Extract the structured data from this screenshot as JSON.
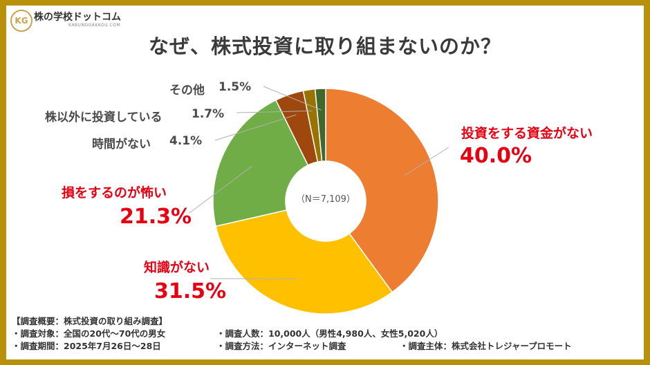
{
  "brand": {
    "name": "株の学校ドットコム",
    "sub": "KABUNOGAKKOU.COM",
    "mark": "KG"
  },
  "title": "なぜ、株式投資に取り組まないのか？",
  "colors": {
    "no_funds": "#ed7d31",
    "knowledge": "#ffc000",
    "fear": "#70ad47",
    "no_time": "#9e480e",
    "other_assets": "#997300",
    "other": "#43682b",
    "accent_red": "#e60012"
  },
  "chart_data": {
    "type": "pie",
    "subtype": "donut",
    "center_label": "（N＝7,109）",
    "categories": [
      "投資をする資金がない",
      "知識がない",
      "損をするのが怖い",
      "時間がない",
      "株以外に投資している",
      "その他"
    ],
    "values": [
      40.0,
      31.5,
      21.3,
      4.1,
      1.7,
      1.5
    ],
    "value_labels": [
      "40.0%",
      "31.5%",
      "21.3%",
      "4.1%",
      "1.7%",
      "1.5%"
    ]
  },
  "footer": {
    "heading": "【調査概要：株式投資の取り組み調査】",
    "items": [
      "・調査対象：全国の20代～70代の男女",
      "・調査人数：10,000人（男性4,980人、女性5,020人）",
      "・調査期間：2025年7月26日～28日",
      "・調査方法：インターネット調査",
      "・調査主体：株式会社トレジャープロモート"
    ]
  }
}
